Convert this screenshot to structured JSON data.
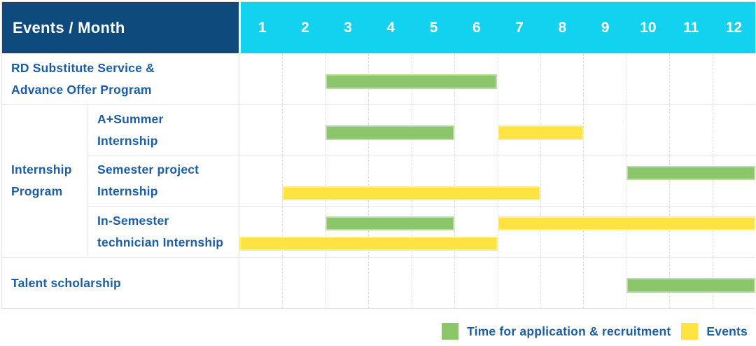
{
  "header": {
    "title": "Events / Month"
  },
  "colors": {
    "header_bg": "#0F4A7D",
    "month_header_bg": "#12D2EF",
    "label_text": "#1A5EA9",
    "application_bar": "#8BC66A",
    "events_bar": "#FFE341",
    "grid_line": "#E3E3E3",
    "header_text": "#FFFFFF"
  },
  "chart_data": {
    "type": "table",
    "subtype": "gantt-schedule",
    "title": "Events / Month",
    "x_label": "Month",
    "x_ticks": [
      "1",
      "2",
      "3",
      "4",
      "5",
      "6",
      "7",
      "8",
      "9",
      "10",
      "11",
      "12"
    ],
    "x_range": [
      1,
      12
    ],
    "grid": true,
    "legend_position": "bottom-right",
    "legend": [
      {
        "series": "application",
        "label": "Time for application & recruitment",
        "color": "#8BC66A"
      },
      {
        "series": "events",
        "label": "Events",
        "color": "#FFE341"
      }
    ],
    "rows": [
      {
        "group": "",
        "group_lines": [],
        "label": "RD Substitute Service & Advance Offer Program",
        "label_lines": [
          "RD Substitute Service &",
          "Advance Offer Program"
        ],
        "bars": [
          {
            "series": "application",
            "start_month": 3,
            "end_month": 6,
            "lane": 0
          }
        ]
      },
      {
        "group": "Internship Program",
        "group_lines": [
          "Internship",
          "Program"
        ],
        "label": "A+Summer Internship",
        "label_lines": [
          "A+Summer",
          "Internship"
        ],
        "bars": [
          {
            "series": "application",
            "start_month": 3,
            "end_month": 5,
            "lane": 0
          },
          {
            "series": "events",
            "start_month": 7,
            "end_month": 8,
            "lane": 0
          }
        ]
      },
      {
        "group": "Internship Program",
        "group_lines": [],
        "label": "Semester project Internship",
        "label_lines": [
          "Semester project",
          "Internship"
        ],
        "bars": [
          {
            "series": "application",
            "start_month": 10,
            "end_month": 12,
            "lane": 0
          },
          {
            "series": "events",
            "start_month": 2,
            "end_month": 7,
            "lane": 1
          }
        ]
      },
      {
        "group": "Internship Program",
        "group_lines": [],
        "label": "In-Semester technician Internship",
        "label_lines": [
          "In-Semester",
          "technician Internship"
        ],
        "bars": [
          {
            "series": "application",
            "start_month": 3,
            "end_month": 5,
            "lane": 0
          },
          {
            "series": "events",
            "start_month": 7,
            "end_month": 12,
            "lane": 0
          },
          {
            "series": "events",
            "start_month": 1,
            "end_month": 6,
            "lane": 1
          }
        ]
      },
      {
        "group": "",
        "group_lines": [],
        "label": "Talent scholarship",
        "label_lines": [
          "Talent scholarship"
        ],
        "bars": [
          {
            "series": "application",
            "start_month": 10,
            "end_month": 12,
            "lane": 0
          }
        ]
      }
    ]
  }
}
